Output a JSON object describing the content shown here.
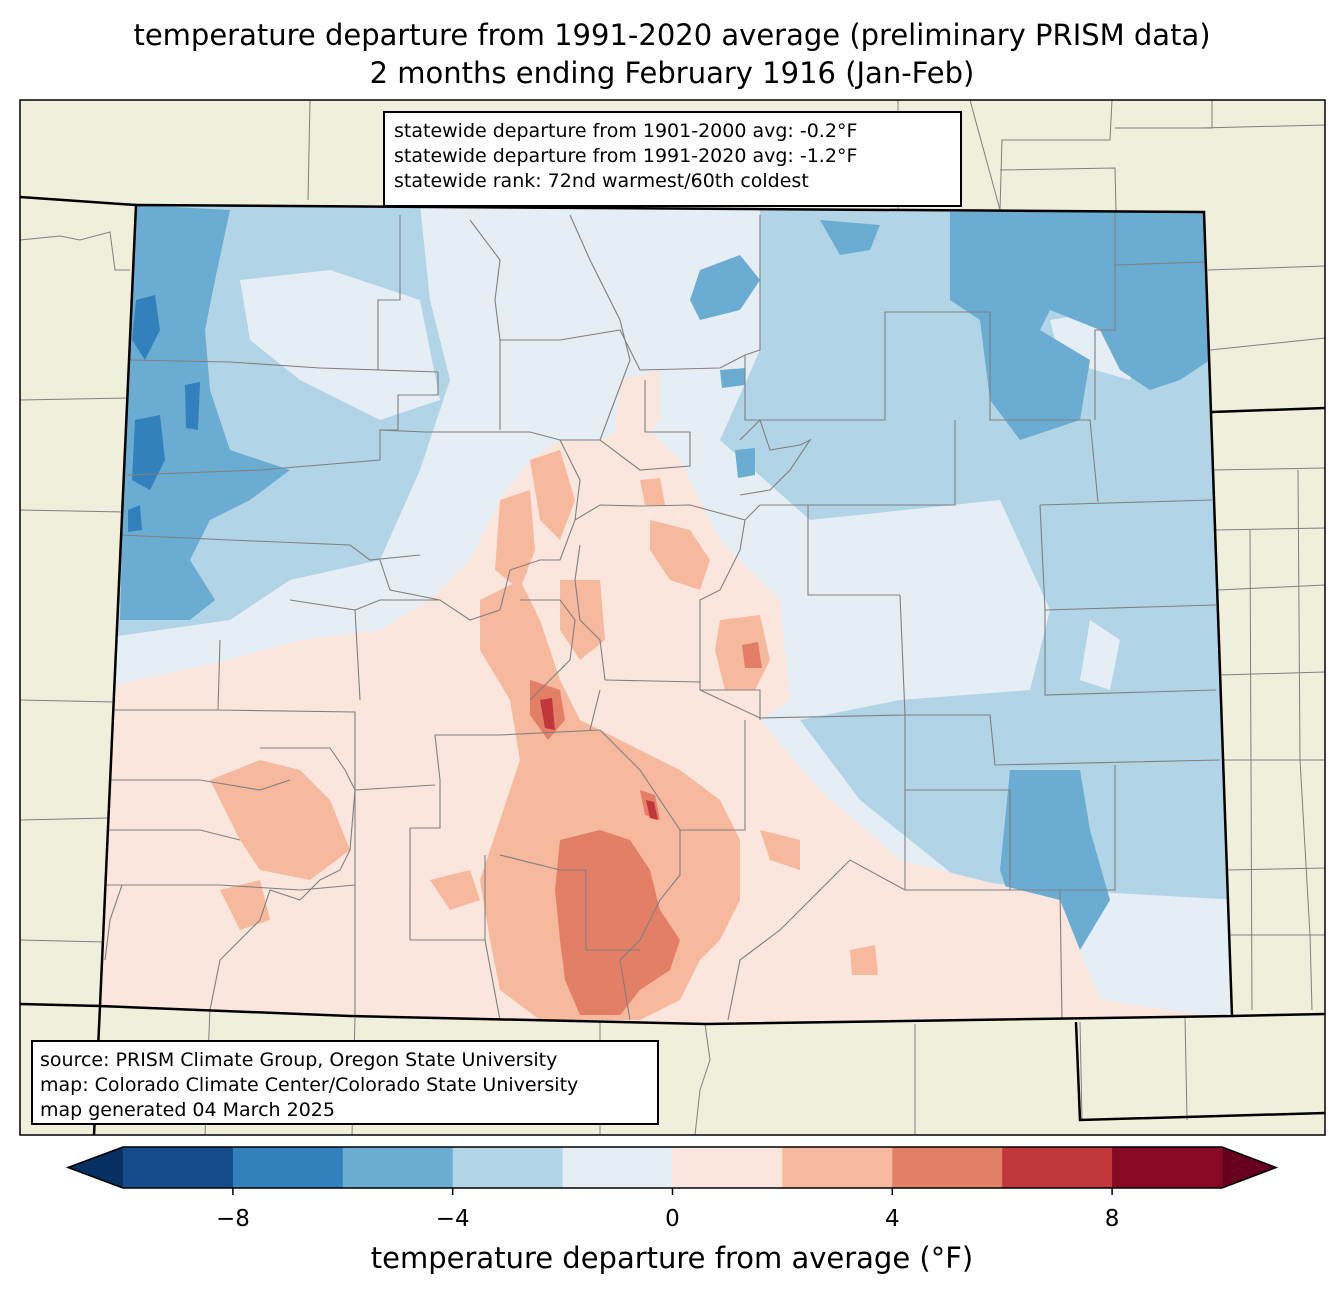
{
  "title": {
    "line1": "temperature departure from 1991-2020 average (preliminary PRISM data)",
    "line2": "2 months ending February 1916 (Jan-Feb)"
  },
  "stats": {
    "line1": "statewide departure from 1901-2000 avg: -0.2°F",
    "line2": "statewide departure from 1991-2020 avg: -1.2°F",
    "line3": "statewide rank: 72nd warmest/60th coldest"
  },
  "credits": {
    "line1": "source: PRISM Climate Group, Oregon State University",
    "line2": "map: Colorado Climate Center/Colorado State University",
    "line3": "map generated 04 March 2025"
  },
  "colorbar": {
    "label": "temperature departure from average (°F)",
    "bins": [
      -10,
      -8,
      -6,
      -4,
      -2,
      0,
      2,
      4,
      6,
      8,
      10
    ],
    "colors": [
      "#144b8a",
      "#3381bc",
      "#6badd2",
      "#b1d4e7",
      "#e6eef5",
      "#fbe6dd",
      "#f6b99e",
      "#e27f66",
      "#c0363a",
      "#870a24"
    ],
    "under_color": "#053061",
    "over_color": "#67001f",
    "tick_values": [
      -8,
      -4,
      0,
      4,
      8
    ],
    "tick_labels": [
      "−8",
      "−4",
      "0",
      "4",
      "8"
    ]
  },
  "map_colors": {
    "land": "#efefdc",
    "state_border": "#000000",
    "county_border": "#808080"
  }
}
